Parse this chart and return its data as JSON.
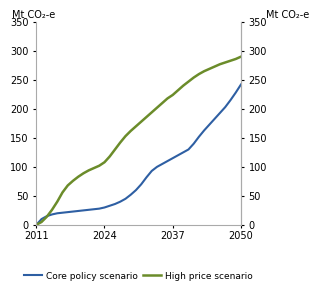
{
  "ylabel_left": "Mt CO₂-e",
  "ylabel_right": "Mt CO₂-e",
  "xlim": [
    2011,
    2050
  ],
  "ylim": [
    0,
    350
  ],
  "xticks": [
    2011,
    2024,
    2037,
    2050
  ],
  "yticks": [
    0,
    50,
    100,
    150,
    200,
    250,
    300,
    350
  ],
  "core_color": "#2E5FA3",
  "high_color": "#6B8C2A",
  "legend_labels": [
    "Core policy scenario",
    "High price scenario"
  ],
  "background_color": "#ffffff",
  "core_policy": {
    "x": [
      2011,
      2012,
      2013,
      2014,
      2015,
      2016,
      2017,
      2018,
      2019,
      2020,
      2021,
      2022,
      2023,
      2024,
      2025,
      2026,
      2027,
      2028,
      2029,
      2030,
      2031,
      2032,
      2033,
      2034,
      2035,
      2036,
      2037,
      2038,
      2039,
      2040,
      2041,
      2042,
      2043,
      2044,
      2045,
      2046,
      2047,
      2048,
      2049,
      2050
    ],
    "y": [
      0,
      10,
      15,
      18,
      20,
      21,
      22,
      23,
      24,
      25,
      26,
      27,
      28,
      30,
      33,
      36,
      40,
      45,
      52,
      60,
      70,
      82,
      93,
      100,
      105,
      110,
      115,
      120,
      125,
      130,
      140,
      152,
      163,
      173,
      183,
      193,
      203,
      215,
      228,
      242
    ]
  },
  "high_price": {
    "x": [
      2011,
      2012,
      2013,
      2014,
      2015,
      2016,
      2017,
      2018,
      2019,
      2020,
      2021,
      2022,
      2023,
      2024,
      2025,
      2026,
      2027,
      2028,
      2029,
      2030,
      2031,
      2032,
      2033,
      2034,
      2035,
      2036,
      2037,
      2038,
      2039,
      2040,
      2041,
      2042,
      2043,
      2044,
      2045,
      2046,
      2047,
      2048,
      2049,
      2050
    ],
    "y": [
      0,
      5,
      14,
      26,
      40,
      56,
      68,
      76,
      83,
      89,
      94,
      98,
      102,
      108,
      118,
      130,
      142,
      153,
      162,
      170,
      178,
      186,
      194,
      202,
      210,
      218,
      224,
      232,
      240,
      247,
      254,
      260,
      265,
      269,
      273,
      277,
      280,
      283,
      286,
      290
    ]
  }
}
